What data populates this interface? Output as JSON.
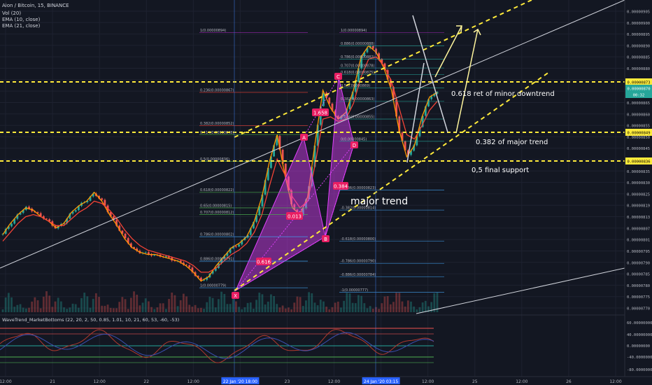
{
  "header": {
    "symbol_line": "Aion / Bitcoin, 15, BINANCE",
    "indicators": [
      "Vol (20)",
      "EMA (10, close)",
      "EMA (21, close)"
    ]
  },
  "oscillator": {
    "title": "WaveTrend_MarketBottoms (22, 20, 2, 50, 0.85, 1.01, 10, 21, 60, 53, -60, -53)",
    "ticks": [
      "60.00000000",
      "40.00000000",
      "0.00000000",
      "-40.00000000",
      "-80.00000000"
    ]
  },
  "colors": {
    "background": "#131722",
    "candle_up": "#26a69a",
    "candle_down": "#ef5350",
    "ema10": "#ff9800",
    "ema21": "#f44336",
    "harmonic_fill": "#e040fb",
    "trend_lines": "#ffeb3b",
    "price_tag_current": "#26a69a"
  },
  "annotations": {
    "major_trend": "major trend",
    "ret_minor": "0.618 ret of minor downtrend",
    "major_382": "0.382 of major trend",
    "final_support": "0,5 final support"
  },
  "harmonic": {
    "points": [
      "X",
      "A",
      "B",
      "C",
      "D"
    ],
    "ratios": [
      "1.658",
      "0.013",
      "0.384",
      "0.616"
    ]
  },
  "fib_left": [
    "1(0.00000894)",
    "0.236(0.00000867)",
    "0.382(0.00000852)",
    "0.414(0.00000848)",
    "0.5(0.00000836)",
    "0.618(0.00000822)",
    "0.65(0.00000815)",
    "0.707(0.00000812)",
    "0.786(0.00000802)",
    "0.886(0.00000791)",
    "1(0.00000779)"
  ],
  "fib_right": [
    "1(0.00000894)",
    "0.886(0.00000888)",
    "0.786(0.00000882)",
    "0.707(0.00000878)",
    "0.618(0.00000875)",
    "0.5(0.00000869)",
    "0.382(0.00000863)",
    "0.236(0.00000855)",
    "0(0.00000845)",
    "-0.236(0.00000823)",
    "-0.382(0.00000814)",
    "-0.618(0.00000800)",
    "-0.786(0.00000790)",
    "-0.886(0.00000784)",
    "-1(0.00000777)"
  ],
  "chart_data": {
    "type": "line",
    "title": "Aion / Bitcoin, 15, BINANCE",
    "y_ticks": [
      "0.00000905",
      "0.00000900",
      "0.00000895",
      "0.00000890",
      "0.00000885",
      "0.00000880",
      "0.00000875",
      "0.00000870",
      "0.00000865",
      "0.00000860",
      "0.00000855",
      "0.00000850",
      "0.00000845",
      "0.00000840",
      "0.00000835",
      "0.00000830",
      "0.00000825",
      "0.00000819",
      "0.00000813",
      "0.00000807",
      "0.00000801",
      "0.00000795",
      "0.00000790",
      "0.00000785",
      "0.00000780",
      "0.00000775",
      "0.00000770"
    ],
    "x_ticks": [
      "12:00",
      "21",
      "12:00",
      "22",
      "12:00",
      "22 Jan '20 18:00",
      "23",
      "12:00",
      "24 Jan '20 03:15",
      "12:00",
      "25",
      "12:00",
      "26",
      "12:00"
    ],
    "price_tags": [
      {
        "value": "0.00000873",
        "color": "#ffeb3b"
      },
      {
        "value": "0.00000870",
        "color": "#26a69a"
      },
      {
        "value": "00:32",
        "color": "#26a69a"
      },
      {
        "value": "0.00000849",
        "color": "#ffeb3b"
      },
      {
        "value": "0.00000836",
        "color": "#ffeb3b"
      }
    ],
    "horizontal_levels": [
      8.73e-06,
      8.49e-06,
      8.36e-06
    ],
    "ylim": [
      7.68e-06,
      9.08e-06
    ],
    "series": [
      {
        "name": "EMA (10, close)",
        "values": [
          8.03e-06,
          8.08e-06,
          8.12e-06,
          8.15e-06,
          8.14e-06,
          8.11e-06,
          8.09e-06,
          8.06e-06,
          8.08e-06,
          8.13e-06,
          8.16e-06,
          8.18e-06,
          8.22e-06,
          8.18e-06,
          8.12e-06,
          8.07e-06,
          8.01e-06,
          7.97e-06,
          7.95e-06,
          7.94e-06,
          7.94e-06,
          7.93e-06,
          7.92e-06,
          7.91e-06,
          7.89e-06,
          7.86e-06,
          7.82e-06,
          7.84e-06,
          7.89e-06,
          7.93e-06,
          7.97e-06,
          7.99e-06,
          8.02e-06,
          8.09e-06,
          8.2e-06,
          8.36e-06,
          8.48e-06,
          8.3e-06,
          8.15e-06,
          8.12e-06,
          8.2e-06,
          8.45e-06,
          8.68e-06,
          8.6e-06,
          8.55e-06,
          8.58e-06,
          8.68e-06,
          8.83e-06,
          8.88e-06,
          8.85e-06,
          8.78e-06,
          8.68e-06,
          8.5e-06,
          8.38e-06,
          8.43e-06,
          8.56e-06,
          8.65e-06,
          8.67e-06
        ]
      },
      {
        "name": "EMA (21, close)",
        "values": [
          8e-06,
          8.04e-06,
          8.08e-06,
          8.11e-06,
          8.12e-06,
          8.11e-06,
          8.09e-06,
          8.07e-06,
          8.07e-06,
          8.1e-06,
          8.13e-06,
          8.15e-06,
          8.18e-06,
          8.17e-06,
          8.14e-06,
          8.1e-06,
          8.05e-06,
          8.01e-06,
          7.98e-06,
          7.96e-06,
          7.95e-06,
          7.94e-06,
          7.93e-06,
          7.92e-06,
          7.91e-06,
          7.89e-06,
          7.86e-06,
          7.86e-06,
          7.88e-06,
          7.91e-06,
          7.94e-06,
          7.96e-06,
          7.99e-06,
          8.04e-06,
          8.12e-06,
          8.25e-06,
          8.37e-06,
          8.3e-06,
          8.2e-06,
          8.15e-06,
          8.18e-06,
          8.35e-06,
          8.55e-06,
          8.56e-06,
          8.54e-06,
          8.55e-06,
          8.62e-06,
          8.74e-06,
          8.82e-06,
          8.83e-06,
          8.79e-06,
          8.72e-06,
          8.6e-06,
          8.48e-06,
          8.46e-06,
          8.52e-06,
          8.59e-06,
          8.63e-06
        ]
      }
    ]
  }
}
